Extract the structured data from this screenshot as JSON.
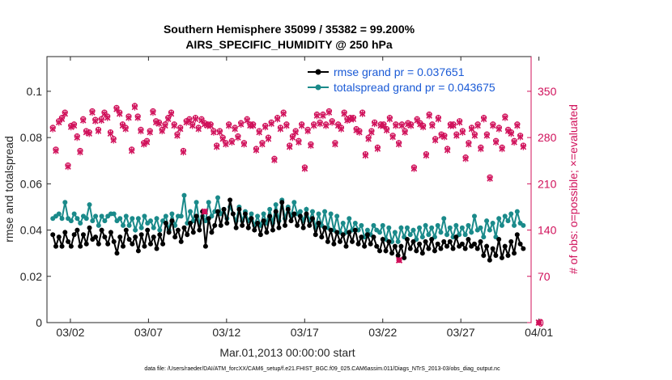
{
  "chart_data": {
    "type": "line",
    "title": "Southern Hemisphere 35099 / 35382 = 99.200%",
    "subtitle": "AIRS_SPECIFIC_HUMIDITY @ 250 hPa",
    "xlabel": "Mar.01,2013 00:00:00 start",
    "ylabel": "rmse and totalspread",
    "ylabel_right": "# of obs: o=possible; ×=evaluated",
    "xlim": [
      0.5,
      31.5
    ],
    "ylim": [
      0,
      0.115
    ],
    "ylim_right": [
      0,
      402.5
    ],
    "x_ticks": [
      {
        "x": 2,
        "label": "03/02"
      },
      {
        "x": 7,
        "label": "03/07"
      },
      {
        "x": 12,
        "label": "03/12"
      },
      {
        "x": 17,
        "label": "03/17"
      },
      {
        "x": 22,
        "label": "03/22"
      },
      {
        "x": 27,
        "label": "03/27"
      },
      {
        "x": 32,
        "label": "04/01"
      }
    ],
    "y_ticks": [
      {
        "v": 0,
        "label": "0"
      },
      {
        "v": 0.02,
        "label": "0.02"
      },
      {
        "v": 0.04,
        "label": "0.04"
      },
      {
        "v": 0.06,
        "label": "0.06"
      },
      {
        "v": 0.08,
        "label": "0.08"
      },
      {
        "v": 0.1,
        "label": "0.1"
      }
    ],
    "y_ticks_right": [
      {
        "v": 0,
        "label": "0"
      },
      {
        "v": 70,
        "label": "70"
      },
      {
        "v": 140,
        "label": "140"
      },
      {
        "v": 210,
        "label": "210"
      },
      {
        "v": 280,
        "label": "280"
      },
      {
        "v": 350,
        "label": "350"
      }
    ],
    "grid": false,
    "legend_position": "top-right",
    "series": [
      {
        "name": "rmse grand pr = 0.037651",
        "color": "#000000",
        "marker": "filled-circle",
        "values": [
          0.038,
          0.033,
          0.037,
          0.033,
          0.039,
          0.035,
          0.033,
          0.038,
          0.04,
          0.033,
          0.038,
          0.034,
          0.041,
          0.036,
          0.037,
          0.034,
          0.04,
          0.037,
          0.034,
          0.039,
          0.035,
          0.03,
          0.037,
          0.033,
          0.04,
          0.036,
          0.034,
          0.037,
          0.031,
          0.038,
          0.033,
          0.04,
          0.034,
          0.037,
          0.032,
          0.038,
          0.034,
          0.043,
          0.039,
          0.044,
          0.037,
          0.04,
          0.035,
          0.041,
          0.038,
          0.043,
          0.039,
          0.046,
          0.04,
          0.048,
          0.033,
          0.045,
          0.039,
          0.042,
          0.048,
          0.042,
          0.049,
          0.043,
          0.053,
          0.047,
          0.041,
          0.049,
          0.042,
          0.047,
          0.041,
          0.045,
          0.04,
          0.043,
          0.038,
          0.044,
          0.039,
          0.046,
          0.04,
          0.048,
          0.041,
          0.052,
          0.042,
          0.049,
          0.044,
          0.047,
          0.042,
          0.046,
          0.041,
          0.047,
          0.042,
          0.045,
          0.038,
          0.043,
          0.037,
          0.041,
          0.035,
          0.04,
          0.034,
          0.039,
          0.035,
          0.038,
          0.033,
          0.039,
          0.035,
          0.04,
          0.034,
          0.037,
          0.033,
          0.038,
          0.034,
          0.037,
          0.033,
          0.031,
          0.036,
          0.031,
          0.035,
          0.03,
          0.033,
          0.029,
          0.033,
          0.028,
          0.036,
          0.032,
          0.035,
          0.031,
          0.034,
          0.03,
          0.035,
          0.032,
          0.036,
          0.031,
          0.034,
          0.032,
          0.035,
          0.033,
          0.035,
          0.032,
          0.037,
          0.033,
          0.034,
          0.032,
          0.036,
          0.033,
          0.034,
          0.032,
          0.035,
          0.029,
          0.033,
          0.027,
          0.032,
          0.029,
          0.036,
          0.028,
          0.033,
          0.029,
          0.035,
          0.03,
          0.038,
          0.034,
          0.032
        ]
      },
      {
        "name": "totalspread grand pr = 0.043675",
        "color": "#1a8a8a",
        "marker": "filled-circle",
        "values": [
          0.045,
          0.046,
          0.047,
          0.045,
          0.052,
          0.045,
          0.044,
          0.047,
          0.045,
          0.043,
          0.046,
          0.045,
          0.051,
          0.044,
          0.046,
          0.042,
          0.046,
          0.044,
          0.046,
          0.047,
          0.047,
          0.044,
          0.045,
          0.042,
          0.046,
          0.042,
          0.045,
          0.04,
          0.045,
          0.041,
          0.046,
          0.043,
          0.044,
          0.041,
          0.045,
          0.04,
          0.044,
          0.046,
          0.04,
          0.047,
          0.042,
          0.046,
          0.046,
          0.055,
          0.043,
          0.048,
          0.044,
          0.052,
          0.043,
          0.046,
          0.044,
          0.052,
          0.046,
          0.048,
          0.054,
          0.047,
          0.049,
          0.045,
          0.05,
          0.047,
          0.044,
          0.05,
          0.044,
          0.048,
          0.044,
          0.047,
          0.042,
          0.046,
          0.042,
          0.047,
          0.043,
          0.049,
          0.043,
          0.051,
          0.044,
          0.053,
          0.045,
          0.05,
          0.046,
          0.052,
          0.047,
          0.048,
          0.044,
          0.049,
          0.044,
          0.048,
          0.041,
          0.047,
          0.042,
          0.048,
          0.041,
          0.047,
          0.04,
          0.046,
          0.039,
          0.043,
          0.039,
          0.045,
          0.04,
          0.043,
          0.04,
          0.042,
          0.037,
          0.04,
          0.038,
          0.042,
          0.04,
          0.039,
          0.042,
          0.036,
          0.041,
          0.035,
          0.039,
          0.035,
          0.041,
          0.037,
          0.041,
          0.038,
          0.04,
          0.036,
          0.041,
          0.037,
          0.042,
          0.038,
          0.041,
          0.037,
          0.042,
          0.039,
          0.045,
          0.038,
          0.041,
          0.037,
          0.042,
          0.038,
          0.041,
          0.038,
          0.042,
          0.039,
          0.046,
          0.04,
          0.041,
          0.037,
          0.044,
          0.04,
          0.043,
          0.037,
          0.045,
          0.042,
          0.046,
          0.044,
          0.047,
          0.042,
          0.048,
          0.043,
          0.042
        ]
      },
      {
        "name": "# of obs possible",
        "color": "#d0105a",
        "marker": "open-circle",
        "axis": "right",
        "values": [
          295,
          262,
          305,
          310,
          318,
          238,
          298,
          300,
          282,
          260,
          308,
          290,
          288,
          320,
          307,
          292,
          308,
          318,
          312,
          288,
          278,
          325,
          318,
          300,
          295,
          312,
          262,
          328,
          312,
          292,
          272,
          275,
          290,
          320,
          305,
          303,
          292,
          300,
          310,
          318,
          300,
          285,
          295,
          260,
          305,
          308,
          300,
          310,
          295,
          308,
          302,
          300,
          300,
          290,
          268,
          290,
          280,
          272,
          300,
          275,
          295,
          282,
          302,
          272,
          308,
          300,
          300,
          263,
          290,
          272,
          298,
          280,
          303,
          248,
          310,
          295,
          318,
          300,
          268,
          282,
          290,
          275,
          300,
          235,
          292,
          270,
          300,
          315,
          303,
          315,
          300,
          320,
          305,
          272,
          300,
          295,
          318,
          308,
          310,
          310,
          293,
          290,
          318,
          255,
          280,
          290,
          303,
          265,
          300,
          300,
          293,
          310,
          283,
          300,
          272,
          300,
          290,
          302,
          300,
          235,
          308,
          302,
          298,
          255,
          315,
          300,
          278,
          310,
          285,
          283,
          263,
          300,
          300,
          285,
          305,
          290,
          250,
          272,
          295,
          285,
          300,
          265,
          310,
          285,
          220,
          300,
          275,
          295,
          265,
          312,
          292,
          288,
          275,
          300,
          283,
          268
        ]
      },
      {
        "name": "# of obs evaluated",
        "color": "#d0105a",
        "marker": "x",
        "axis": "right",
        "values": [
          293,
          260,
          303,
          308,
          316,
          236,
          296,
          298,
          280,
          258,
          306,
          288,
          286,
          318,
          305,
          290,
          306,
          316,
          310,
          286,
          276,
          323,
          316,
          298,
          293,
          310,
          260,
          326,
          310,
          290,
          270,
          273,
          288,
          318,
          303,
          301,
          290,
          298,
          308,
          316,
          298,
          283,
          293,
          258,
          303,
          306,
          298,
          308,
          293,
          306,
          300,
          298,
          298,
          288,
          266,
          288,
          278,
          270,
          298,
          273,
          293,
          280,
          300,
          270,
          306,
          298,
          298,
          261,
          288,
          270,
          296,
          278,
          301,
          246,
          308,
          293,
          316,
          298,
          266,
          280,
          288,
          273,
          298,
          233,
          290,
          268,
          298,
          313,
          301,
          313,
          298,
          318,
          303,
          270,
          298,
          293,
          316,
          306,
          308,
          308,
          291,
          288,
          316,
          253,
          278,
          288,
          301,
          263,
          298,
          298,
          291,
          308,
          281,
          298,
          270,
          298,
          288,
          300,
          298,
          233,
          306,
          300,
          296,
          253,
          313,
          298,
          276,
          308,
          283,
          281,
          261,
          298,
          298,
          283,
          303,
          288,
          248,
          270,
          293,
          283,
          298,
          263,
          308,
          283,
          218,
          298,
          273,
          293,
          263,
          310,
          290,
          286,
          273,
          298,
          281,
          266
        ]
      }
    ],
    "special_points": [
      {
        "x": 10.6,
        "y": 0.048,
        "color": "#d0105a"
      },
      {
        "x": 23.05,
        "y": 0.027,
        "color": "#d0105a"
      },
      {
        "x": 32.0,
        "y": 0,
        "color": "#d0105a"
      }
    ],
    "colors": {
      "left_axis": "#262626",
      "right_axis": "#d0105a",
      "legend_text": "#1a5ad6"
    }
  },
  "footnote": "data file: /Users/raeder/DAI/ATM_forcXX/CAM6_setup/f.e21.FHIST_BGC.f09_025.CAM6assim.011/Diags_NTrS_2013-03/obs_diag_output.nc"
}
